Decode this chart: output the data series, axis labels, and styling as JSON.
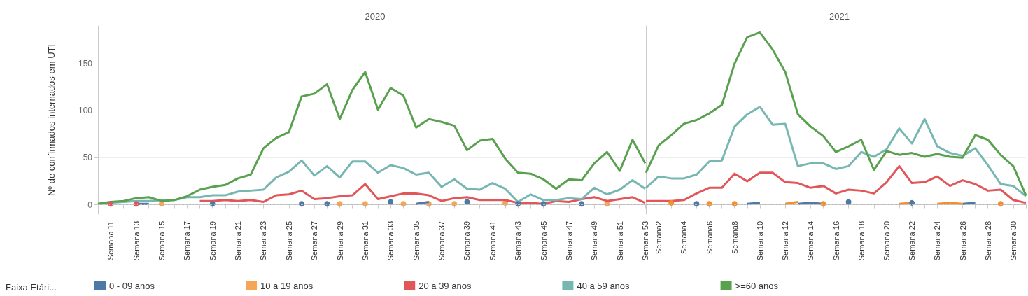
{
  "chart_data": [
    {
      "type": "line",
      "title": "2020",
      "ylabel": "Nº de confirmados internados em UTI",
      "legend_title": "Faixa Etári...",
      "legend": "bottom",
      "grid": "y",
      "categories": [
        null,
        "Semana 11",
        null,
        "Semana 13",
        null,
        "Semana 15",
        null,
        "Semana 17",
        null,
        "Semana 19",
        null,
        "Semana 21",
        null,
        "Semana 23",
        null,
        "Semana 25",
        null,
        "Semana 27",
        null,
        "Semana 29",
        null,
        "Semana 31",
        null,
        "Semana 33",
        null,
        "Semana 35",
        null,
        "Semana 37",
        null,
        "Semana 39",
        null,
        "Semana 41",
        null,
        "Semana 43",
        null,
        "Semana 45",
        null,
        "Semana 47",
        null,
        "Semana 49",
        null,
        "Semana 51",
        null,
        "Semana 53"
      ],
      "ylim": [
        -10,
        190
      ],
      "yticks": [
        0,
        50,
        100,
        150
      ],
      "ref_lines": [
        {
          "axis": "y",
          "value": 0,
          "line_style": "dotted",
          "color": "#bbbbbb"
        }
      ],
      "series": [
        {
          "name": "0 - 09 anos",
          "color": "#4e79a7",
          "values": [
            null,
            null,
            null,
            1,
            1,
            null,
            null,
            null,
            null,
            1,
            null,
            null,
            null,
            null,
            null,
            null,
            1,
            null,
            1,
            null,
            null,
            null,
            null,
            3,
            null,
            1,
            3,
            null,
            null,
            3,
            null,
            null,
            null,
            1,
            null,
            1,
            null,
            null,
            1,
            null,
            null,
            null,
            null,
            null
          ]
        },
        {
          "name": "10 a 19 anos",
          "type": "scatter",
          "color": "#f28e2b",
          "values": [
            null,
            null,
            null,
            null,
            null,
            1,
            null,
            null,
            null,
            null,
            null,
            null,
            null,
            null,
            null,
            null,
            null,
            null,
            null,
            1,
            null,
            1,
            null,
            null,
            1,
            null,
            1,
            null,
            1,
            null,
            null,
            null,
            2,
            null,
            null,
            null,
            null,
            null,
            null,
            null,
            1,
            null,
            null,
            null
          ]
        },
        {
          "name": "20 a 39 anos",
          "color": "#e15759",
          "values": [
            null,
            1,
            null,
            1,
            null,
            null,
            null,
            null,
            4,
            4,
            5,
            4,
            5,
            3,
            10,
            11,
            15,
            6,
            7,
            9,
            10,
            22,
            6,
            9,
            12,
            12,
            10,
            4,
            7,
            8,
            5,
            5,
            5,
            2,
            2,
            1,
            4,
            3,
            6,
            8,
            4,
            6,
            8,
            2
          ]
        },
        {
          "name": "40 a 59 anos",
          "color": "#76b7b2",
          "values": [
            1,
            2,
            3,
            4,
            4,
            5,
            5,
            8,
            8,
            10,
            10,
            14,
            15,
            16,
            29,
            35,
            47,
            31,
            41,
            29,
            46,
            46,
            34,
            42,
            39,
            32,
            34,
            19,
            27,
            17,
            16,
            23,
            17,
            3,
            11,
            5,
            5,
            7,
            6,
            18,
            11,
            16,
            26,
            17
          ]
        },
        {
          "name": ">=60 anos",
          "color": "#59a14f",
          "values": [
            1,
            3,
            4,
            7,
            8,
            4,
            5,
            9,
            16,
            19,
            21,
            28,
            32,
            60,
            71,
            77,
            115,
            118,
            128,
            91,
            122,
            141,
            101,
            124,
            116,
            82,
            91,
            88,
            84,
            58,
            68,
            70,
            49,
            34,
            33,
            27,
            17,
            27,
            26,
            44,
            56,
            36,
            69,
            44
          ]
        }
      ]
    },
    {
      "type": "line",
      "title": "2021",
      "grid": "y",
      "tick_labels": "x",
      "categories": [
        null,
        "Semana2",
        null,
        "Semana4",
        null,
        "Semana6",
        null,
        "Semana8",
        null,
        "Semana 10",
        null,
        "Semana 12",
        null,
        "Semana 14",
        null,
        "Semana 16",
        null,
        "Semana 18",
        null,
        "Semana 20",
        null,
        "Semana 22",
        null,
        "Semana 24",
        null,
        "Semana 26",
        null,
        "Semana 28",
        null,
        "Semana 30",
        null
      ],
      "ylim": [
        -10,
        190
      ],
      "yticks": [
        0,
        50,
        100,
        150
      ],
      "ref_lines": [
        {
          "axis": "y",
          "value": 0,
          "line_style": "dotted",
          "color": "#bbbbbb"
        }
      ],
      "series": [
        {
          "color": "#4e79a7",
          "values": [
            null,
            null,
            null,
            null,
            1,
            null,
            null,
            null,
            1,
            2,
            null,
            null,
            1,
            2,
            1,
            null,
            3,
            null,
            null,
            null,
            null,
            2,
            null,
            null,
            null,
            1,
            2,
            null,
            null,
            null,
            null
          ]
        },
        {
          "color": "#f28e2b",
          "values": [
            null,
            null,
            2,
            null,
            null,
            1,
            null,
            1,
            null,
            null,
            null,
            1,
            3,
            null,
            1,
            null,
            null,
            null,
            null,
            null,
            1,
            2,
            null,
            1,
            2,
            1,
            null,
            null,
            1,
            null,
            null
          ]
        },
        {
          "color": "#e15759",
          "values": [
            4,
            4,
            4,
            5,
            12,
            18,
            18,
            33,
            25,
            34,
            34,
            24,
            23,
            18,
            20,
            12,
            16,
            15,
            12,
            24,
            41,
            23,
            24,
            30,
            20,
            26,
            22,
            15,
            16,
            5,
            2
          ]
        },
        {
          "color": "#76b7b2",
          "values": [
            18,
            30,
            28,
            28,
            32,
            46,
            47,
            83,
            96,
            104,
            85,
            86,
            41,
            44,
            44,
            38,
            41,
            56,
            51,
            59,
            81,
            65,
            91,
            62,
            55,
            52,
            60,
            42,
            22,
            20,
            9
          ]
        },
        {
          "color": "#59a14f",
          "values": [
            34,
            63,
            74,
            86,
            90,
            97,
            106,
            150,
            178,
            183,
            165,
            141,
            96,
            83,
            73,
            56,
            62,
            69,
            37,
            57,
            53,
            55,
            51,
            54,
            51,
            50,
            74,
            69,
            53,
            41,
            10
          ]
        }
      ]
    }
  ]
}
